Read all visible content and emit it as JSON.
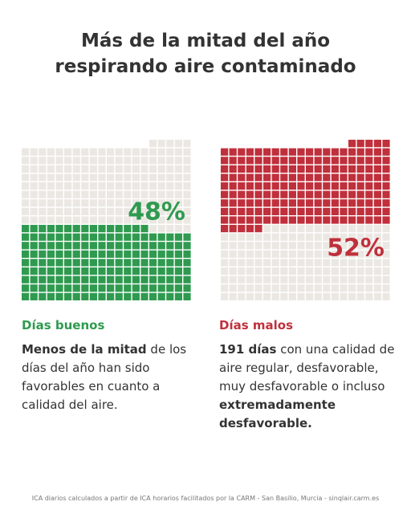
{
  "title": [
    "Más de la mitad del año",
    "respirando aire contaminado"
  ],
  "chart_data": [
    {
      "type": "waffle",
      "fill_from": "bottom",
      "cells": 365,
      "columns": 20,
      "value": 48,
      "value_label": "48%",
      "color": "#2f9a4f",
      "empty_color": "#ebe8e3"
    },
    {
      "type": "waffle",
      "fill_from": "top",
      "cells": 365,
      "columns": 20,
      "value": 52,
      "value_label": "52%",
      "color": "#c0303c",
      "empty_color": "#ebe8e3"
    }
  ],
  "panels": [
    {
      "heading": "Días buenos",
      "text": [
        {
          "text": "Menos de la mitad",
          "bold": true
        },
        {
          "text": " de los días del año han sido favorables en cuanto a calidad del aire.",
          "bold": false
        }
      ]
    },
    {
      "heading": "Días malos",
      "text": [
        {
          "text": "191 días",
          "bold": true
        },
        {
          "text": " con una calidad de aire regular, desfavorable, muy desfavorable o incluso ",
          "bold": false
        },
        {
          "text": "extremadamente desfavorable.",
          "bold": true
        }
      ]
    }
  ],
  "footer": "ICA diarios calculados a partir de ICA horarios facilitados por la CARM - San Basilio, Murcia - sinqlair.carm.es"
}
